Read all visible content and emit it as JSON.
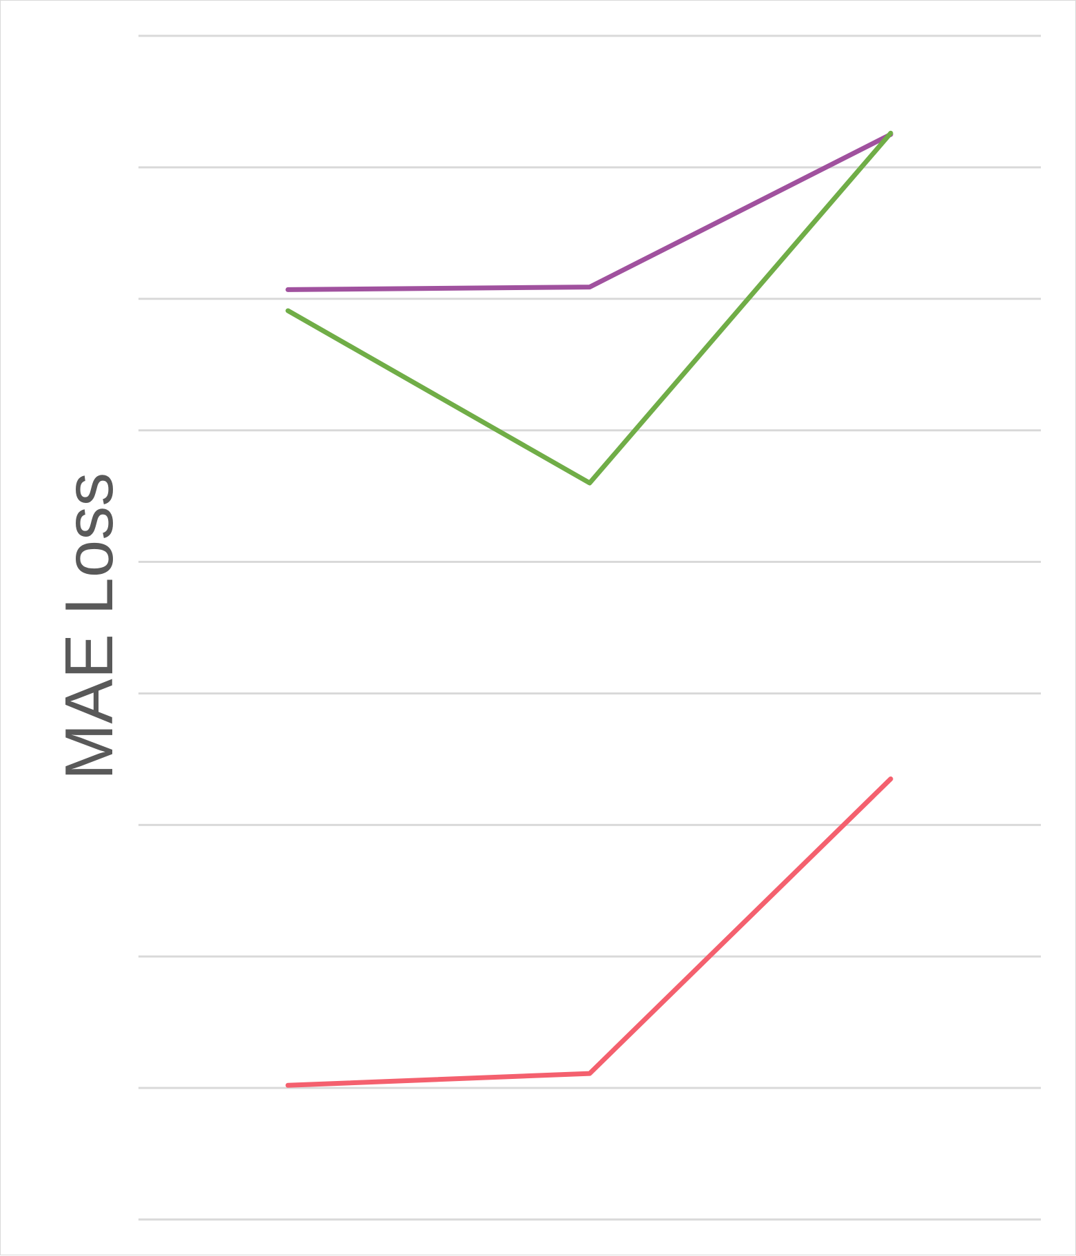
{
  "chart_data": {
    "type": "line",
    "title": "",
    "xlabel": "",
    "ylabel": "MAE Loss",
    "categories": [
      "",
      "",
      ""
    ],
    "ylim": [
      0,
      9
    ],
    "grid": true,
    "legend": "none",
    "series": [
      {
        "color": "#a0519e",
        "values": [
          7.07,
          7.09,
          8.25
        ]
      },
      {
        "color": "#70ad47",
        "values": [
          6.91,
          5.6,
          8.26
        ]
      },
      {
        "color": "#f4606e",
        "values": [
          1.02,
          1.11,
          3.35
        ]
      }
    ],
    "gridline_color": "#d9d9d9",
    "axis_text_color": "#595959"
  }
}
